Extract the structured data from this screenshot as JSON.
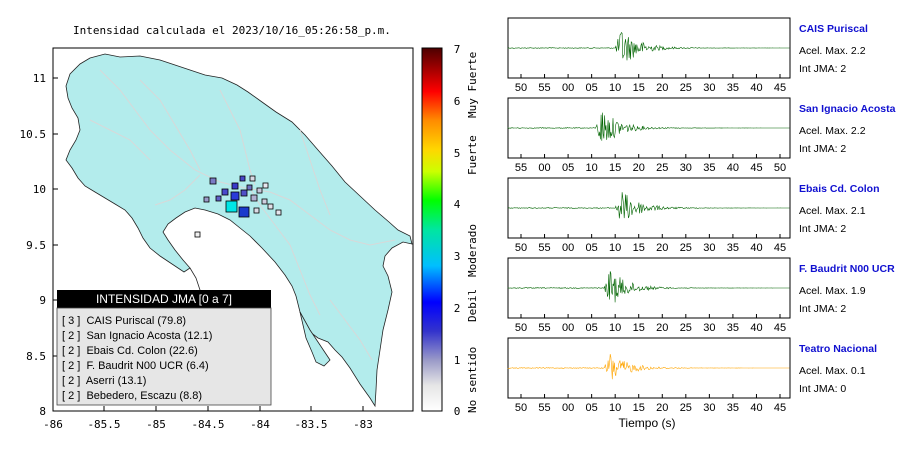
{
  "map": {
    "title": "Intensidad calculada el 2023/10/16_05:26:58_p.m.",
    "x_ticks": [
      "-86",
      "-85.5",
      "-85",
      "-84.5",
      "-84",
      "-83.5",
      "-83"
    ],
    "y_ticks": [
      "11",
      "10.5",
      "10",
      "9.5",
      "9",
      "8.5",
      "8"
    ],
    "legend_title": "INTENSIDAD JMA [0 a 7]",
    "stations": [
      {
        "label": "[ 3 ]  CAIS Puriscal (79.8)"
      },
      {
        "label": "[ 2 ]  San Ignacio Acosta (12.1)"
      },
      {
        "label": "[ 2 ]  Ebais Cd. Colon (22.6)"
      },
      {
        "label": "[ 2 ]  F. Baudrit N00 UCR (6.4)"
      },
      {
        "label": "[ 2 ]  Aserri (13.1)"
      },
      {
        "label": "[ 2 ]  Bebedero, Escazu (8.8)"
      }
    ],
    "colors": {
      "land": "#b3ecec",
      "water": "#ffffff"
    }
  },
  "colorbar": {
    "ticks": [
      "0",
      "1",
      "2",
      "3",
      "4",
      "5",
      "6",
      "7"
    ],
    "categories": [
      "No sentido",
      "Debil",
      "Moderado",
      "Fuerte",
      "Muy Fuerte"
    ]
  },
  "traces": {
    "xlabel": "Tiempo (s)",
    "panels": [
      {
        "name": "CAIS Puriscal",
        "accel": "Acel. Max. 2.2",
        "jma": "Int JMA: 2",
        "color": "#006400",
        "ticks": [
          "50",
          "55",
          "00",
          "05",
          "10",
          "15",
          "20",
          "25",
          "30",
          "35",
          "40",
          "45"
        ],
        "onset": 0.38,
        "amp": 1.0
      },
      {
        "name": "San Ignacio Acosta",
        "accel": "Acel. Max. 2.2",
        "jma": "Int JMA: 2",
        "color": "#006400",
        "ticks": [
          "55",
          "00",
          "05",
          "10",
          "15",
          "20",
          "25",
          "30",
          "35",
          "40",
          "45",
          "50"
        ],
        "onset": 0.31,
        "amp": 1.0
      },
      {
        "name": "Ebais Cd. Colon",
        "accel": "Acel. Max. 2.1",
        "jma": "Int JMA: 2",
        "color": "#006400",
        "ticks": [
          "50",
          "55",
          "00",
          "05",
          "10",
          "15",
          "20",
          "25",
          "30",
          "35",
          "40",
          "45"
        ],
        "onset": 0.38,
        "amp": 0.9
      },
      {
        "name": "F. Baudrit N00 UCR",
        "accel": "Acel. Max. 1.9",
        "jma": "Int JMA: 2",
        "color": "#006400",
        "ticks": [
          "50",
          "55",
          "00",
          "05",
          "10",
          "15",
          "20",
          "25",
          "30",
          "35",
          "40",
          "45"
        ],
        "onset": 0.34,
        "amp": 0.95
      },
      {
        "name": "Teatro Nacional",
        "accel": "Acel. Max. 0.1",
        "jma": "Int JMA: 0",
        "color": "#ffa500",
        "ticks": [
          "50",
          "55",
          "00",
          "05",
          "10",
          "15",
          "20",
          "25",
          "30",
          "35",
          "40",
          "45"
        ],
        "onset": 0.34,
        "amp": 0.8
      }
    ]
  },
  "chart_data": [
    {
      "type": "scatter",
      "title": "Intensidad calculada el 2023/10/16_05:26:58_p.m.",
      "xlim": [
        -86,
        -82.5
      ],
      "ylim": [
        8,
        11.3
      ],
      "legend": "bottom-left",
      "stations": [
        {
          "name": "CAIS Puriscal",
          "jma": 3,
          "pga": 79.8
        },
        {
          "name": "San Ignacio Acosta",
          "jma": 2,
          "pga": 12.1
        },
        {
          "name": "Ebais Cd. Colon",
          "jma": 2,
          "pga": 22.6
        },
        {
          "name": "F. Baudrit N00 UCR",
          "jma": 2,
          "pga": 6.4
        },
        {
          "name": "Aserri",
          "jma": 2,
          "pga": 13.1
        },
        {
          "name": "Bebedero, Escazu",
          "jma": 2,
          "pga": 8.8
        }
      ],
      "colorbar_range": [
        0,
        7
      ]
    },
    {
      "type": "line",
      "xlabel": "Tiempo (s)",
      "series": [
        {
          "name": "CAIS Puriscal",
          "acel_max": 2.2,
          "int_jma": 2
        },
        {
          "name": "San Ignacio Acosta",
          "acel_max": 2.2,
          "int_jma": 2
        },
        {
          "name": "Ebais Cd. Colon",
          "acel_max": 2.1,
          "int_jma": 2
        },
        {
          "name": "F. Baudrit N00 UCR",
          "acel_max": 1.9,
          "int_jma": 2
        },
        {
          "name": "Teatro Nacional",
          "acel_max": 0.1,
          "int_jma": 0
        }
      ]
    }
  ]
}
